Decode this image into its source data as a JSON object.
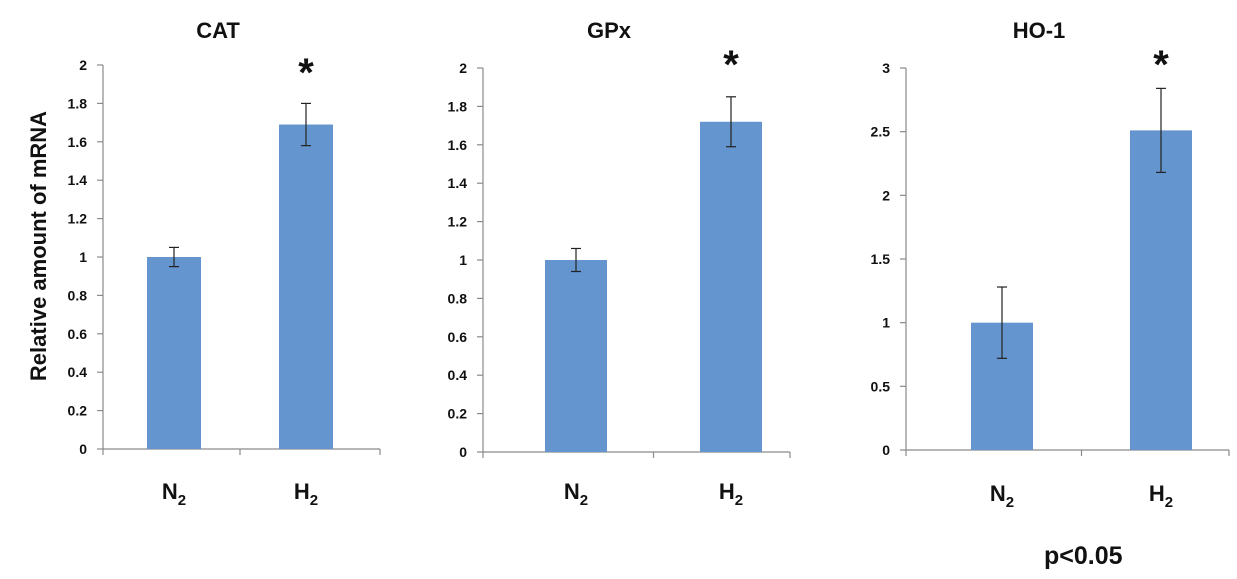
{
  "chart_data": [
    {
      "type": "bar",
      "title": "CAT",
      "ylabel": "Relative amount of mRNA",
      "categories": [
        "N2",
        "H2"
      ],
      "category_labels": [
        {
          "base": "N",
          "sub": "2"
        },
        {
          "base": "H",
          "sub": "2"
        }
      ],
      "values": [
        1.0,
        1.69
      ],
      "errors": [
        0.05,
        0.11
      ],
      "significance": [
        "",
        "*"
      ],
      "ylim": [
        0,
        2
      ],
      "yticks": [
        0,
        0.2,
        0.4,
        0.6,
        0.8,
        1,
        1.2,
        1.4,
        1.6,
        1.8,
        2
      ],
      "ytick_labels": [
        "0",
        "0.2",
        "0.4",
        "0.6",
        "0.8",
        "1",
        "1.2",
        "1.4",
        "1.6",
        "1.8",
        "2"
      ],
      "grid": false,
      "bar_color": "#6495ce"
    },
    {
      "type": "bar",
      "title": "GPx",
      "ylabel": "",
      "categories": [
        "N2",
        "H2"
      ],
      "category_labels": [
        {
          "base": "N",
          "sub": "2"
        },
        {
          "base": "H",
          "sub": "2"
        }
      ],
      "values": [
        1.0,
        1.72
      ],
      "errors": [
        0.06,
        0.13
      ],
      "significance": [
        "",
        "*"
      ],
      "ylim": [
        0,
        2
      ],
      "yticks": [
        0,
        0.2,
        0.4,
        0.6,
        0.8,
        1,
        1.2,
        1.4,
        1.6,
        1.8,
        2
      ],
      "ytick_labels": [
        "0",
        "0.2",
        "0.4",
        "0.6",
        "0.8",
        "1",
        "1.2",
        "1.4",
        "1.6",
        "1.8",
        "2"
      ],
      "grid": false,
      "bar_color": "#6495ce"
    },
    {
      "type": "bar",
      "title": "HO-1",
      "ylabel": "",
      "categories": [
        "N2",
        "H2"
      ],
      "category_labels": [
        {
          "base": "N",
          "sub": "2"
        },
        {
          "base": "H",
          "sub": "2"
        }
      ],
      "values": [
        1.0,
        2.51
      ],
      "errors": [
        0.28,
        0.33
      ],
      "significance": [
        "",
        "*"
      ],
      "ylim": [
        0,
        3
      ],
      "yticks": [
        0,
        0.5,
        1,
        1.5,
        2,
        2.5,
        3
      ],
      "ytick_labels": [
        "0",
        "0.5",
        "1",
        "1.5",
        "2",
        "2.5",
        "3"
      ],
      "grid": false,
      "bar_color": "#6495ce"
    }
  ],
  "footnote": "p<0.05"
}
